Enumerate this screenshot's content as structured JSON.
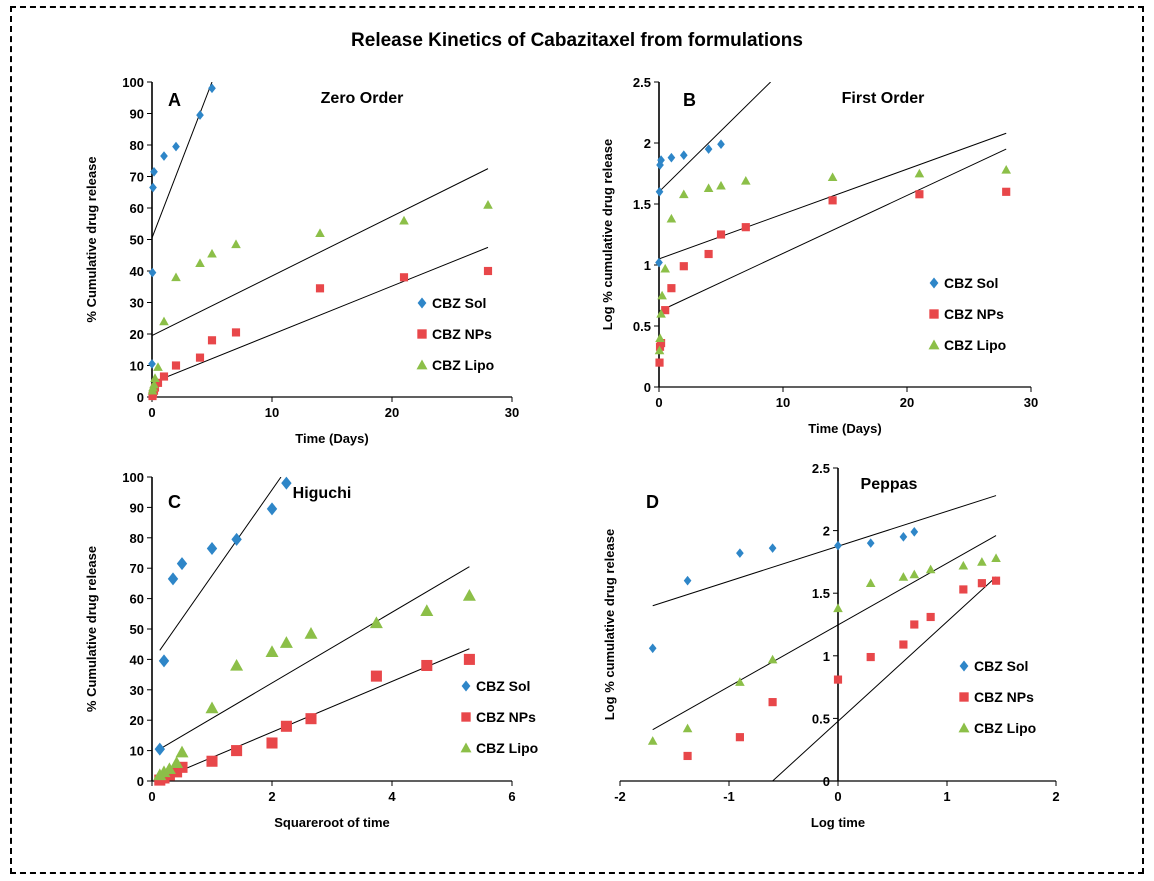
{
  "title": "Release Kinetics of Cabazitaxel from formulations",
  "colors": {
    "sol": "#2e86c8",
    "nps": "#e8474a",
    "lipo": "#8cbf48"
  },
  "chart_data": [
    {
      "type": "scatter",
      "panel": "A",
      "title": "Zero Order",
      "xlabel": "Time (Days)",
      "ylabel": "% Cumulative drug release",
      "xlim": [
        0,
        30
      ],
      "ylim": [
        0,
        100
      ],
      "xticks": [
        0,
        10,
        20,
        30
      ],
      "yticks": [
        0,
        10,
        20,
        30,
        40,
        50,
        60,
        70,
        80,
        90,
        100
      ],
      "legend": "right",
      "marker_size": "small",
      "series": [
        {
          "name": "CBZ Sol",
          "color": "#2e86c8",
          "marker": "diamond",
          "x": [
            0,
            0.042,
            0.083,
            0.167,
            1,
            2,
            4,
            5
          ],
          "y": [
            10.5,
            39.5,
            66.5,
            71.5,
            76.5,
            79.5,
            89.5,
            98
          ]
        },
        {
          "name": "CBZ NPs",
          "color": "#e8474a",
          "marker": "square",
          "x": [
            0.042,
            0.083,
            0.167,
            0.25,
            0.5,
            1,
            2,
            4,
            5,
            7,
            14,
            21,
            28
          ],
          "y": [
            0.3,
            1,
            2,
            3,
            4.5,
            6.5,
            10,
            12.5,
            18,
            20.5,
            34.5,
            38,
            40
          ]
        },
        {
          "name": "CBZ Lipo",
          "color": "#8cbf48",
          "marker": "triangle",
          "x": [
            0.042,
            0.083,
            0.167,
            0.25,
            0.5,
            1,
            2,
            4,
            5,
            7,
            14,
            21,
            28
          ],
          "y": [
            2,
            3,
            4,
            6,
            9.5,
            24,
            38,
            42.5,
            45.5,
            48.5,
            52,
            56,
            61
          ]
        }
      ],
      "trendlines": [
        {
          "x": [
            0,
            5
          ],
          "y": [
            50.5,
            100
          ]
        },
        {
          "x": [
            0,
            28
          ],
          "y": [
            19.5,
            72.5
          ]
        },
        {
          "x": [
            0,
            28
          ],
          "y": [
            4.5,
            47.5
          ]
        }
      ]
    },
    {
      "type": "scatter",
      "panel": "B",
      "title": "First Order",
      "xlabel": "Time (Days)",
      "ylabel": "Log % cumulative drug release",
      "xlim": [
        0,
        30
      ],
      "ylim": [
        0,
        2.5
      ],
      "xticks": [
        0,
        10,
        20,
        30
      ],
      "yticks": [
        0,
        0.5,
        1,
        1.5,
        2,
        2.5
      ],
      "legend": "right",
      "marker_size": "small",
      "series": [
        {
          "name": "CBZ Sol",
          "color": "#2e86c8",
          "marker": "diamond",
          "x": [
            0,
            0.042,
            0.083,
            0.167,
            1,
            2,
            4,
            5
          ],
          "y": [
            1.02,
            1.6,
            1.82,
            1.86,
            1.88,
            1.9,
            1.95,
            1.99
          ]
        },
        {
          "name": "CBZ NPs",
          "color": "#e8474a",
          "marker": "square",
          "x": [
            0.042,
            0.083,
            0.167,
            0.5,
            1,
            2,
            4,
            5,
            7,
            14,
            21,
            28
          ],
          "y": [
            0.2,
            0.33,
            0.36,
            0.63,
            0.81,
            0.99,
            1.09,
            1.25,
            1.31,
            1.53,
            1.58,
            1.6
          ]
        },
        {
          "name": "CBZ Lipo",
          "color": "#8cbf48",
          "marker": "triangle",
          "x": [
            0.042,
            0.083,
            0.167,
            0.25,
            0.5,
            1,
            2,
            4,
            5,
            7,
            14,
            21,
            28
          ],
          "y": [
            0.3,
            0.4,
            0.6,
            0.75,
            0.97,
            1.38,
            1.58,
            1.63,
            1.65,
            1.69,
            1.72,
            1.75,
            1.78
          ]
        }
      ],
      "trendlines": [
        {
          "x": [
            0,
            9
          ],
          "y": [
            1.6,
            2.5
          ]
        },
        {
          "x": [
            0,
            28
          ],
          "y": [
            1.05,
            2.08
          ]
        },
        {
          "x": [
            0,
            28
          ],
          "y": [
            0.62,
            1.95
          ]
        }
      ]
    },
    {
      "type": "scatter",
      "panel": "C",
      "title": "Higuchi",
      "xlabel": "Squareroot of time",
      "ylabel": "% Cumulative drug release",
      "xlim": [
        0,
        6
      ],
      "ylim": [
        0,
        100
      ],
      "xticks": [
        0,
        2,
        4,
        6
      ],
      "yticks": [
        0,
        10,
        20,
        30,
        40,
        50,
        60,
        70,
        80,
        90,
        100
      ],
      "legend": "right",
      "marker_size": "large",
      "series": [
        {
          "name": "CBZ Sol",
          "color": "#2e86c8",
          "marker": "diamond",
          "x": [
            0.13,
            0.2,
            0.35,
            0.5,
            1,
            1.41,
            2,
            2.24
          ],
          "y": [
            10.5,
            39.5,
            66.5,
            71.5,
            76.5,
            79.5,
            89.5,
            98
          ]
        },
        {
          "name": "CBZ NPs",
          "color": "#e8474a",
          "marker": "square",
          "x": [
            0.13,
            0.2,
            0.29,
            0.41,
            0.5,
            1,
            1.41,
            2,
            2.24,
            2.65,
            3.74,
            4.58,
            5.29
          ],
          "y": [
            0.3,
            1,
            2,
            3,
            4.5,
            6.5,
            10,
            12.5,
            18,
            20.5,
            34.5,
            38,
            40
          ]
        },
        {
          "name": "CBZ Lipo",
          "color": "#8cbf48",
          "marker": "triangle",
          "x": [
            0.13,
            0.2,
            0.29,
            0.41,
            0.5,
            1,
            1.41,
            2,
            2.24,
            2.65,
            3.74,
            4.58,
            5.29
          ],
          "y": [
            2,
            3,
            4,
            6,
            9.5,
            24,
            38,
            42.5,
            45.5,
            48.5,
            52,
            56,
            61
          ]
        }
      ],
      "trendlines": [
        {
          "x": [
            0.13,
            2.15
          ],
          "y": [
            43,
            100
          ]
        },
        {
          "x": [
            0.13,
            5.29
          ],
          "y": [
            10.5,
            70.5
          ]
        },
        {
          "x": [
            0.13,
            5.29
          ],
          "y": [
            0.5,
            43.5
          ]
        }
      ]
    },
    {
      "type": "scatter",
      "panel": "D",
      "title": "Peppas",
      "xlabel": "Log time",
      "ylabel": "Log % cumulative drug release",
      "xlim": [
        -2,
        2
      ],
      "ylim": [
        0,
        2.5
      ],
      "xticks": [
        -2,
        -1,
        0,
        1,
        2
      ],
      "yticks": [
        0,
        0.5,
        1,
        1.5,
        2,
        2.5
      ],
      "legend": "right",
      "marker_size": "small",
      "series": [
        {
          "name": "CBZ Sol",
          "color": "#2e86c8",
          "marker": "diamond",
          "x": [
            -1.7,
            -1.38,
            -0.9,
            -0.6,
            0,
            0.3,
            0.6,
            0.7
          ],
          "y": [
            1.06,
            1.6,
            1.82,
            1.86,
            1.88,
            1.9,
            1.95,
            1.99
          ]
        },
        {
          "name": "CBZ NPs",
          "color": "#e8474a",
          "marker": "square",
          "x": [
            -1.38,
            -0.9,
            -0.6,
            0,
            0.3,
            0.6,
            0.7,
            0.85,
            1.15,
            1.32,
            1.45
          ],
          "y": [
            0.2,
            0.35,
            0.63,
            0.81,
            0.99,
            1.09,
            1.25,
            1.31,
            1.53,
            1.58,
            1.6
          ]
        },
        {
          "name": "CBZ Lipo",
          "color": "#8cbf48",
          "marker": "triangle",
          "x": [
            -1.7,
            -1.38,
            -0.9,
            -0.6,
            0,
            0.3,
            0.6,
            0.7,
            0.85,
            1.15,
            1.32,
            1.45
          ],
          "y": [
            0.32,
            0.42,
            0.79,
            0.97,
            1.38,
            1.58,
            1.63,
            1.65,
            1.69,
            1.72,
            1.75,
            1.78
          ]
        }
      ],
      "trendlines": [
        {
          "x": [
            -1.7,
            1.45
          ],
          "y": [
            1.4,
            2.28
          ]
        },
        {
          "x": [
            -1.7,
            1.45
          ],
          "y": [
            0.41,
            1.96
          ]
        },
        {
          "x": [
            -0.6,
            1.45
          ],
          "y": [
            0,
            1.63
          ]
        }
      ]
    }
  ]
}
